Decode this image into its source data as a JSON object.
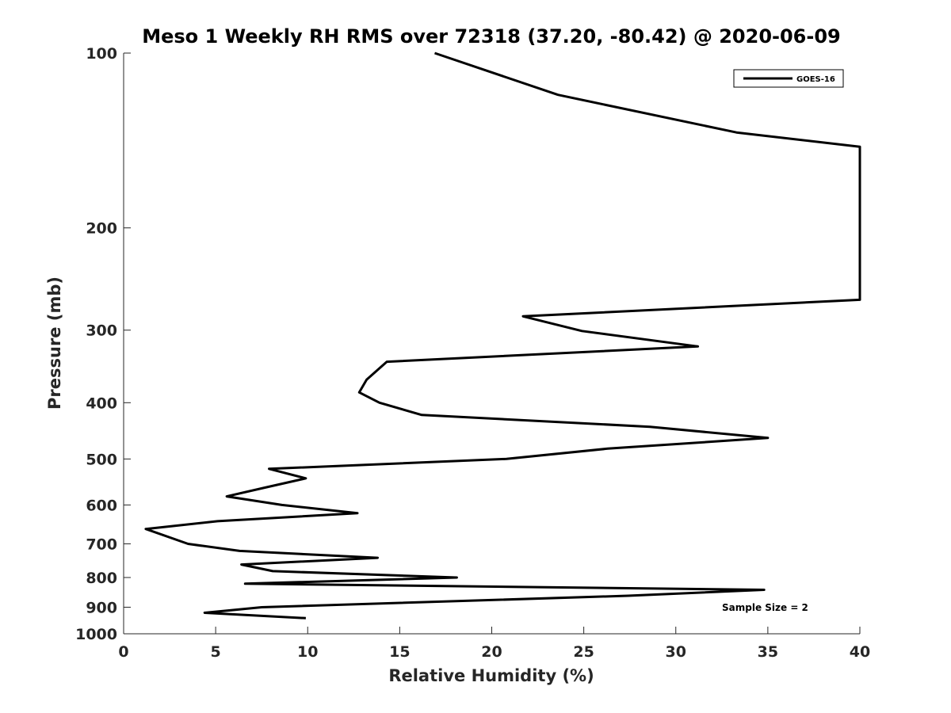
{
  "chart_data": {
    "type": "line",
    "title": "Meso 1 Weekly RH RMS over 72318 (37.20, -80.42) @ 2020-06-09",
    "xlabel": "Relative Humidity (%)",
    "ylabel": "Pressure (mb)",
    "xlim": [
      0,
      40
    ],
    "ylim": [
      100,
      1000
    ],
    "y_scale": "log",
    "y_reversed": true,
    "grid": false,
    "x_ticks": [
      "0",
      "5",
      "10",
      "15",
      "20",
      "25",
      "30",
      "35",
      "40"
    ],
    "y_ticks": [
      "100",
      "200",
      "300",
      "400",
      "500",
      "600",
      "700",
      "800",
      "900",
      "1000"
    ],
    "legend": {
      "position": "top-right",
      "entries": [
        "GOES-16"
      ]
    },
    "annotation": "Sample Size = 2",
    "series": [
      {
        "name": "GOES-16",
        "color": "#000000",
        "x": [
          16.9,
          23.6,
          33.3,
          40.0,
          40.0,
          21.7,
          24.9,
          31.2,
          14.3,
          13.2,
          12.8,
          13.9,
          16.2,
          28.6,
          35.0,
          26.3,
          20.8,
          7.9,
          9.9,
          7.7,
          5.6,
          8.6,
          12.7,
          5.1,
          1.2,
          3.5,
          6.3,
          13.8,
          6.4,
          8.1,
          18.1,
          6.6,
          34.8,
          27.4,
          7.5,
          4.4,
          9.9
        ],
        "y": [
          100,
          118,
          137,
          145,
          266,
          284,
          301,
          320,
          340,
          365,
          384,
          400,
          420,
          440,
          460,
          480,
          500,
          520,
          540,
          560,
          580,
          600,
          620,
          640,
          660,
          700,
          720,
          740,
          760,
          780,
          800,
          820,
          840,
          860,
          900,
          920,
          940
        ]
      }
    ]
  }
}
